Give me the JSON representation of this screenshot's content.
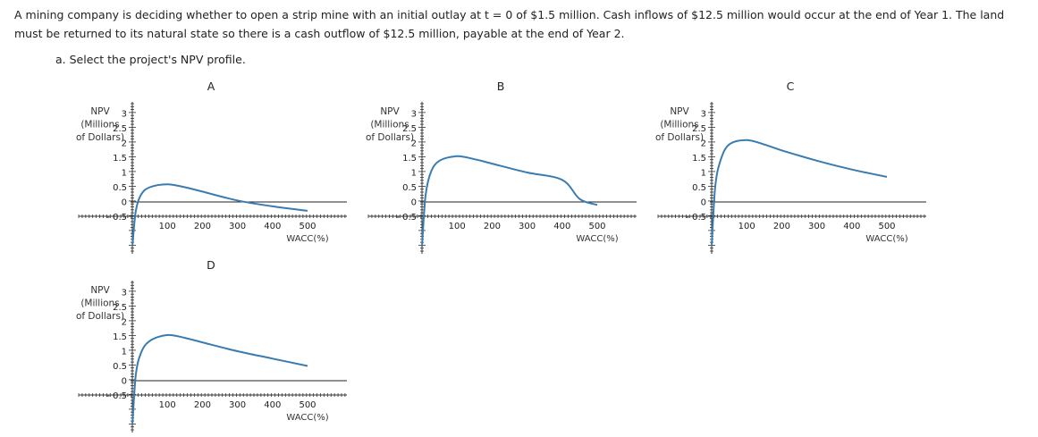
{
  "question": {
    "text": "A mining company is deciding whether to open a strip mine with an initial outlay at t = 0 of $1.5 million. Cash inflows of $12.5 million would occur at the end of Year 1. The land must be returned to its natural state so there is a cash outflow of $12.5 million, payable at the end of Year 2.",
    "part_a": "a. Select the project's NPV profile."
  },
  "colors": {
    "curve": "#3a7bb0",
    "axis": "#333333",
    "zero_line": "#222222"
  },
  "chart_data": [
    {
      "label": "A",
      "type": "line",
      "ylabel": [
        "NPV",
        "(Millions",
        "of Dollars)"
      ],
      "xlabel": "WACC(%)",
      "y_ticks": [
        "3",
        "2.5",
        "2",
        "1.5",
        "1",
        "0.5",
        "0",
        "- 0.5"
      ],
      "x_ticks": [
        "100",
        "200",
        "300",
        "400",
        "500"
      ],
      "ylim": [
        -0.5,
        3
      ],
      "xlim": [
        0,
        500
      ],
      "series": [
        {
          "x": [
            0,
            10,
            25,
            50,
            100,
            150,
            200,
            300,
            400,
            500
          ],
          "y": [
            -1.5,
            -0.3,
            0.25,
            0.5,
            0.6,
            0.5,
            0.35,
            0.05,
            -0.15,
            -0.3
          ]
        }
      ]
    },
    {
      "label": "B",
      "type": "line",
      "ylabel": [
        "NPV",
        "(Millions",
        "of Dollars)"
      ],
      "xlabel": "WACC(%)",
      "y_ticks": [
        "3",
        "2.5",
        "2",
        "1.5",
        "1",
        "0.5",
        "0",
        "- 0.5"
      ],
      "x_ticks": [
        "100",
        "200",
        "300",
        "400",
        "500"
      ],
      "ylim": [
        -0.5,
        3
      ],
      "xlim": [
        0,
        500
      ],
      "series": [
        {
          "x": [
            0,
            10,
            25,
            50,
            100,
            150,
            200,
            300,
            400,
            450,
            500
          ],
          "y": [
            -1.5,
            0.2,
            1.0,
            1.4,
            1.55,
            1.45,
            1.3,
            1.0,
            0.75,
            0.1,
            -0.1
          ]
        }
      ]
    },
    {
      "label": "C",
      "type": "line",
      "ylabel": [
        "NPV",
        "(Millions",
        "of Dollars)"
      ],
      "xlabel": "WACC(%)",
      "y_ticks": [
        "3",
        "2.5",
        "2",
        "1.5",
        "1",
        "0.5",
        "0",
        "- 0.5"
      ],
      "x_ticks": [
        "100",
        "200",
        "300",
        "400",
        "500"
      ],
      "ylim": [
        -0.5,
        3
      ],
      "xlim": [
        0,
        500
      ],
      "series": [
        {
          "x": [
            0,
            10,
            25,
            50,
            100,
            150,
            200,
            300,
            400,
            500
          ],
          "y": [
            -1.5,
            0.5,
            1.4,
            1.95,
            2.1,
            1.95,
            1.75,
            1.4,
            1.1,
            0.85
          ]
        }
      ]
    },
    {
      "label": "D",
      "type": "line",
      "ylabel": [
        "NPV",
        "(Millions",
        "of Dollars)"
      ],
      "xlabel": "WACC(%)",
      "y_ticks": [
        "3",
        "2.5",
        "2",
        "1.5",
        "1",
        "0.5",
        "0",
        "- 0.5"
      ],
      "x_ticks": [
        "100",
        "200",
        "300",
        "400",
        "500"
      ],
      "ylim": [
        -0.5,
        3
      ],
      "xlim": [
        0,
        500
      ],
      "series": [
        {
          "x": [
            0,
            10,
            25,
            50,
            100,
            150,
            200,
            300,
            400,
            500
          ],
          "y": [
            -1.5,
            0.2,
            0.95,
            1.35,
            1.55,
            1.45,
            1.3,
            1.0,
            0.75,
            0.5
          ]
        }
      ]
    }
  ]
}
